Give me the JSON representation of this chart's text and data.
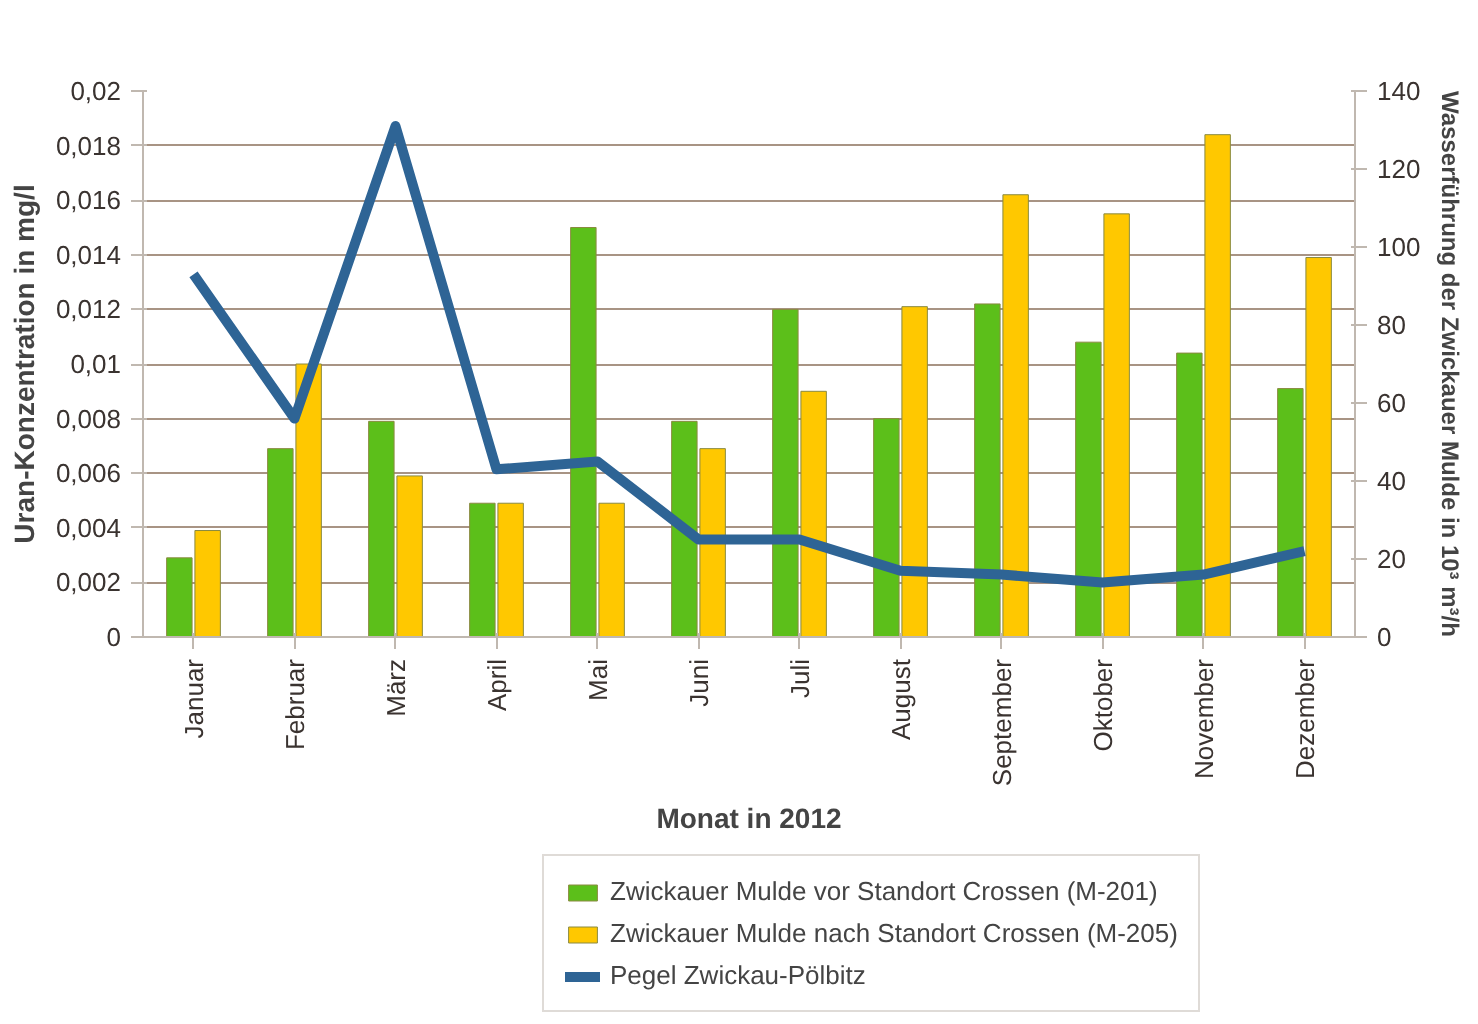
{
  "chart_data": {
    "type": "bar",
    "xlabel": "Monat in 2012",
    "ylabel": "Uran-Konzentration in mg/l",
    "y2label": "Wasserführung der Zwickauer Mulde in 10³ m³/h",
    "categories": [
      "Januar",
      "Februar",
      "März",
      "April",
      "Mai",
      "Juni",
      "Juli",
      "August",
      "September",
      "Oktober",
      "November",
      "Dezember"
    ],
    "series": [
      {
        "name": "Zwickauer Mulde vor Standort Crossen (M-201)",
        "color": "#5cbf1a",
        "values": [
          0.0029,
          0.0069,
          0.0079,
          0.0049,
          0.015,
          0.0079,
          0.012,
          0.008,
          0.0122,
          0.0108,
          0.0104,
          0.0091
        ]
      },
      {
        "name": "Zwickauer Mulde nach Standort Crossen (M-205)",
        "color": "#ffc800",
        "values": [
          0.0039,
          0.01,
          0.0059,
          0.0049,
          0.0049,
          0.0069,
          0.009,
          0.0121,
          0.0162,
          0.0155,
          0.0184,
          0.0139
        ]
      },
      {
        "name": "Pegel Zwickau-Pölbitz",
        "type": "line",
        "axis": "y2",
        "color": "#2e6495",
        "values": [
          93,
          56,
          131,
          43,
          45,
          25,
          25,
          17,
          16,
          14,
          16,
          22
        ]
      }
    ],
    "ylim": [
      0,
      0.02
    ],
    "yticks": [
      {
        "value": 0,
        "label": "0"
      },
      {
        "value": 0.002,
        "label": "0,002"
      },
      {
        "value": 0.004,
        "label": "0,004"
      },
      {
        "value": 0.006,
        "label": "0,006"
      },
      {
        "value": 0.008,
        "label": "0,008"
      },
      {
        "value": 0.01,
        "label": "0,01"
      },
      {
        "value": 0.012,
        "label": "0,012"
      },
      {
        "value": 0.014,
        "label": "0,014"
      },
      {
        "value": 0.016,
        "label": "0,016"
      },
      {
        "value": 0.018,
        "label": "0,018"
      },
      {
        "value": 0.02,
        "label": "0,02"
      }
    ],
    "y2lim": [
      0,
      140
    ],
    "y2ticks": [
      0,
      20,
      40,
      60,
      80,
      100,
      120,
      140
    ],
    "grid": "y",
    "legend": "bottom",
    "line_style": "solid"
  }
}
